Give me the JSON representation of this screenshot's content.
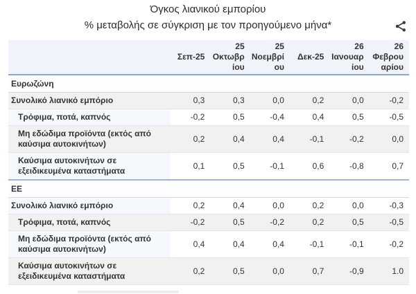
{
  "header": {
    "title": "Όγκος λιανικού εμπορίου",
    "subtitle": "% μεταβολής σε σύγκριση με τον προηγούμενο μήνα*"
  },
  "icons": {
    "share": "share-icon"
  },
  "colors": {
    "accent_border": "#8ea6c9",
    "header_bg": "#f0f4fa",
    "stripe_gray": "#f1f1f2",
    "label_tint": "#f5f8fd",
    "text": "#333333"
  },
  "chart_data": {
    "type": "table",
    "title": "Όγκος λιανικού εμπορίου",
    "subtitle": "% μεταβολής σε σύγκριση με τον προηγούμενο μήνα*",
    "columns": [
      "Σεπ-25",
      "25 Οκτωβρίου",
      "25 Νοεμβρίου",
      "Δεκ-25",
      "26 Ιανουαρίου",
      "26 Φεβρουαρίου"
    ],
    "columns_display": [
      "",
      "Σεπ-25",
      "25\nΟκτωβρ\nίου",
      "25\nΝοεμβρί\nου",
      "Δεκ-25",
      "26\nΙανουαρ\nίου",
      "26\nΦεβρου\nαρίου"
    ],
    "sections": [
      {
        "label": "Ευρωζώνη",
        "rows": [
          {
            "label": "Συνολικό λιανικό εμπόριο",
            "indent": false,
            "values": [
              "0,3",
              "0,3",
              "0,0",
              "0,2",
              "0,0",
              "-0,2"
            ]
          },
          {
            "label": "Τρόφιμα, ποτά, καπνός",
            "indent": true,
            "values": [
              "-0,2",
              "0,5",
              "-0,4",
              "0,4",
              "0,5",
              "-0,5"
            ]
          },
          {
            "label": "Μη εδώδιμα προϊόντα (εκτός από καύσιμα αυτοκινήτων)",
            "indent": true,
            "values": [
              "0,2",
              "0,4",
              "0,4",
              "-0,1",
              "-0,2",
              "0,0"
            ]
          },
          {
            "label": "Καύσιμα αυτοκινήτων σε εξειδικευμένα καταστήματα",
            "indent": true,
            "values": [
              "0,1",
              "0,5",
              "-0,1",
              "0,6",
              "-0,8",
              "0,7"
            ]
          }
        ]
      },
      {
        "label": "ΕΕ",
        "rows": [
          {
            "label": "Συνολικό λιανικό εμπόριο",
            "indent": false,
            "values": [
              "0,2",
              "0,4",
              "0,0",
              "0,2",
              "0,0",
              "-0,3"
            ]
          },
          {
            "label": "Τρόφιμα, ποτά, καπνός",
            "indent": true,
            "values": [
              "-0,2",
              "0,5",
              "-0,2",
              "0,2",
              "0,5",
              "-0,5"
            ]
          },
          {
            "label": "Μη εδώδιμα προϊόντα (εκτός από καύσιμα αυτοκινήτων)",
            "indent": true,
            "values": [
              "0,4",
              "0,4",
              "0,4",
              "-0,1",
              "-0,1",
              "-0,2"
            ]
          },
          {
            "label": "Καύσιμα αυτοκινήτων σε εξειδικευμένα καταστήματα",
            "indent": true,
            "values": [
              "0,2",
              "0,5",
              "0,0",
              "0,7",
              "-0,9",
              "1.0"
            ]
          }
        ]
      }
    ]
  }
}
